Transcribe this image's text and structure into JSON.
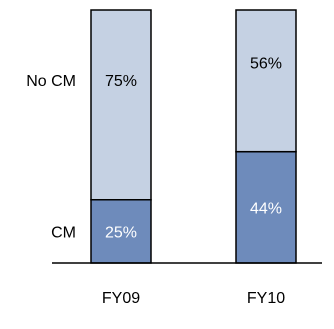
{
  "chart_data": {
    "type": "bar",
    "stacked": true,
    "categories": [
      "FY09",
      "FY10"
    ],
    "series": [
      {
        "name": "CM",
        "values": [
          25,
          44
        ],
        "labels": [
          "25%",
          "44%"
        ],
        "color": "#6e8bbb",
        "label_color": "#ffffff"
      },
      {
        "name": "No CM",
        "values": [
          75,
          56
        ],
        "labels": [
          "75%",
          "56%"
        ],
        "color": "#c5d1e3",
        "label_color": "#000000"
      }
    ],
    "ylim": [
      0,
      100
    ],
    "legend": "left",
    "grid": false,
    "outline_color": "#000000"
  }
}
